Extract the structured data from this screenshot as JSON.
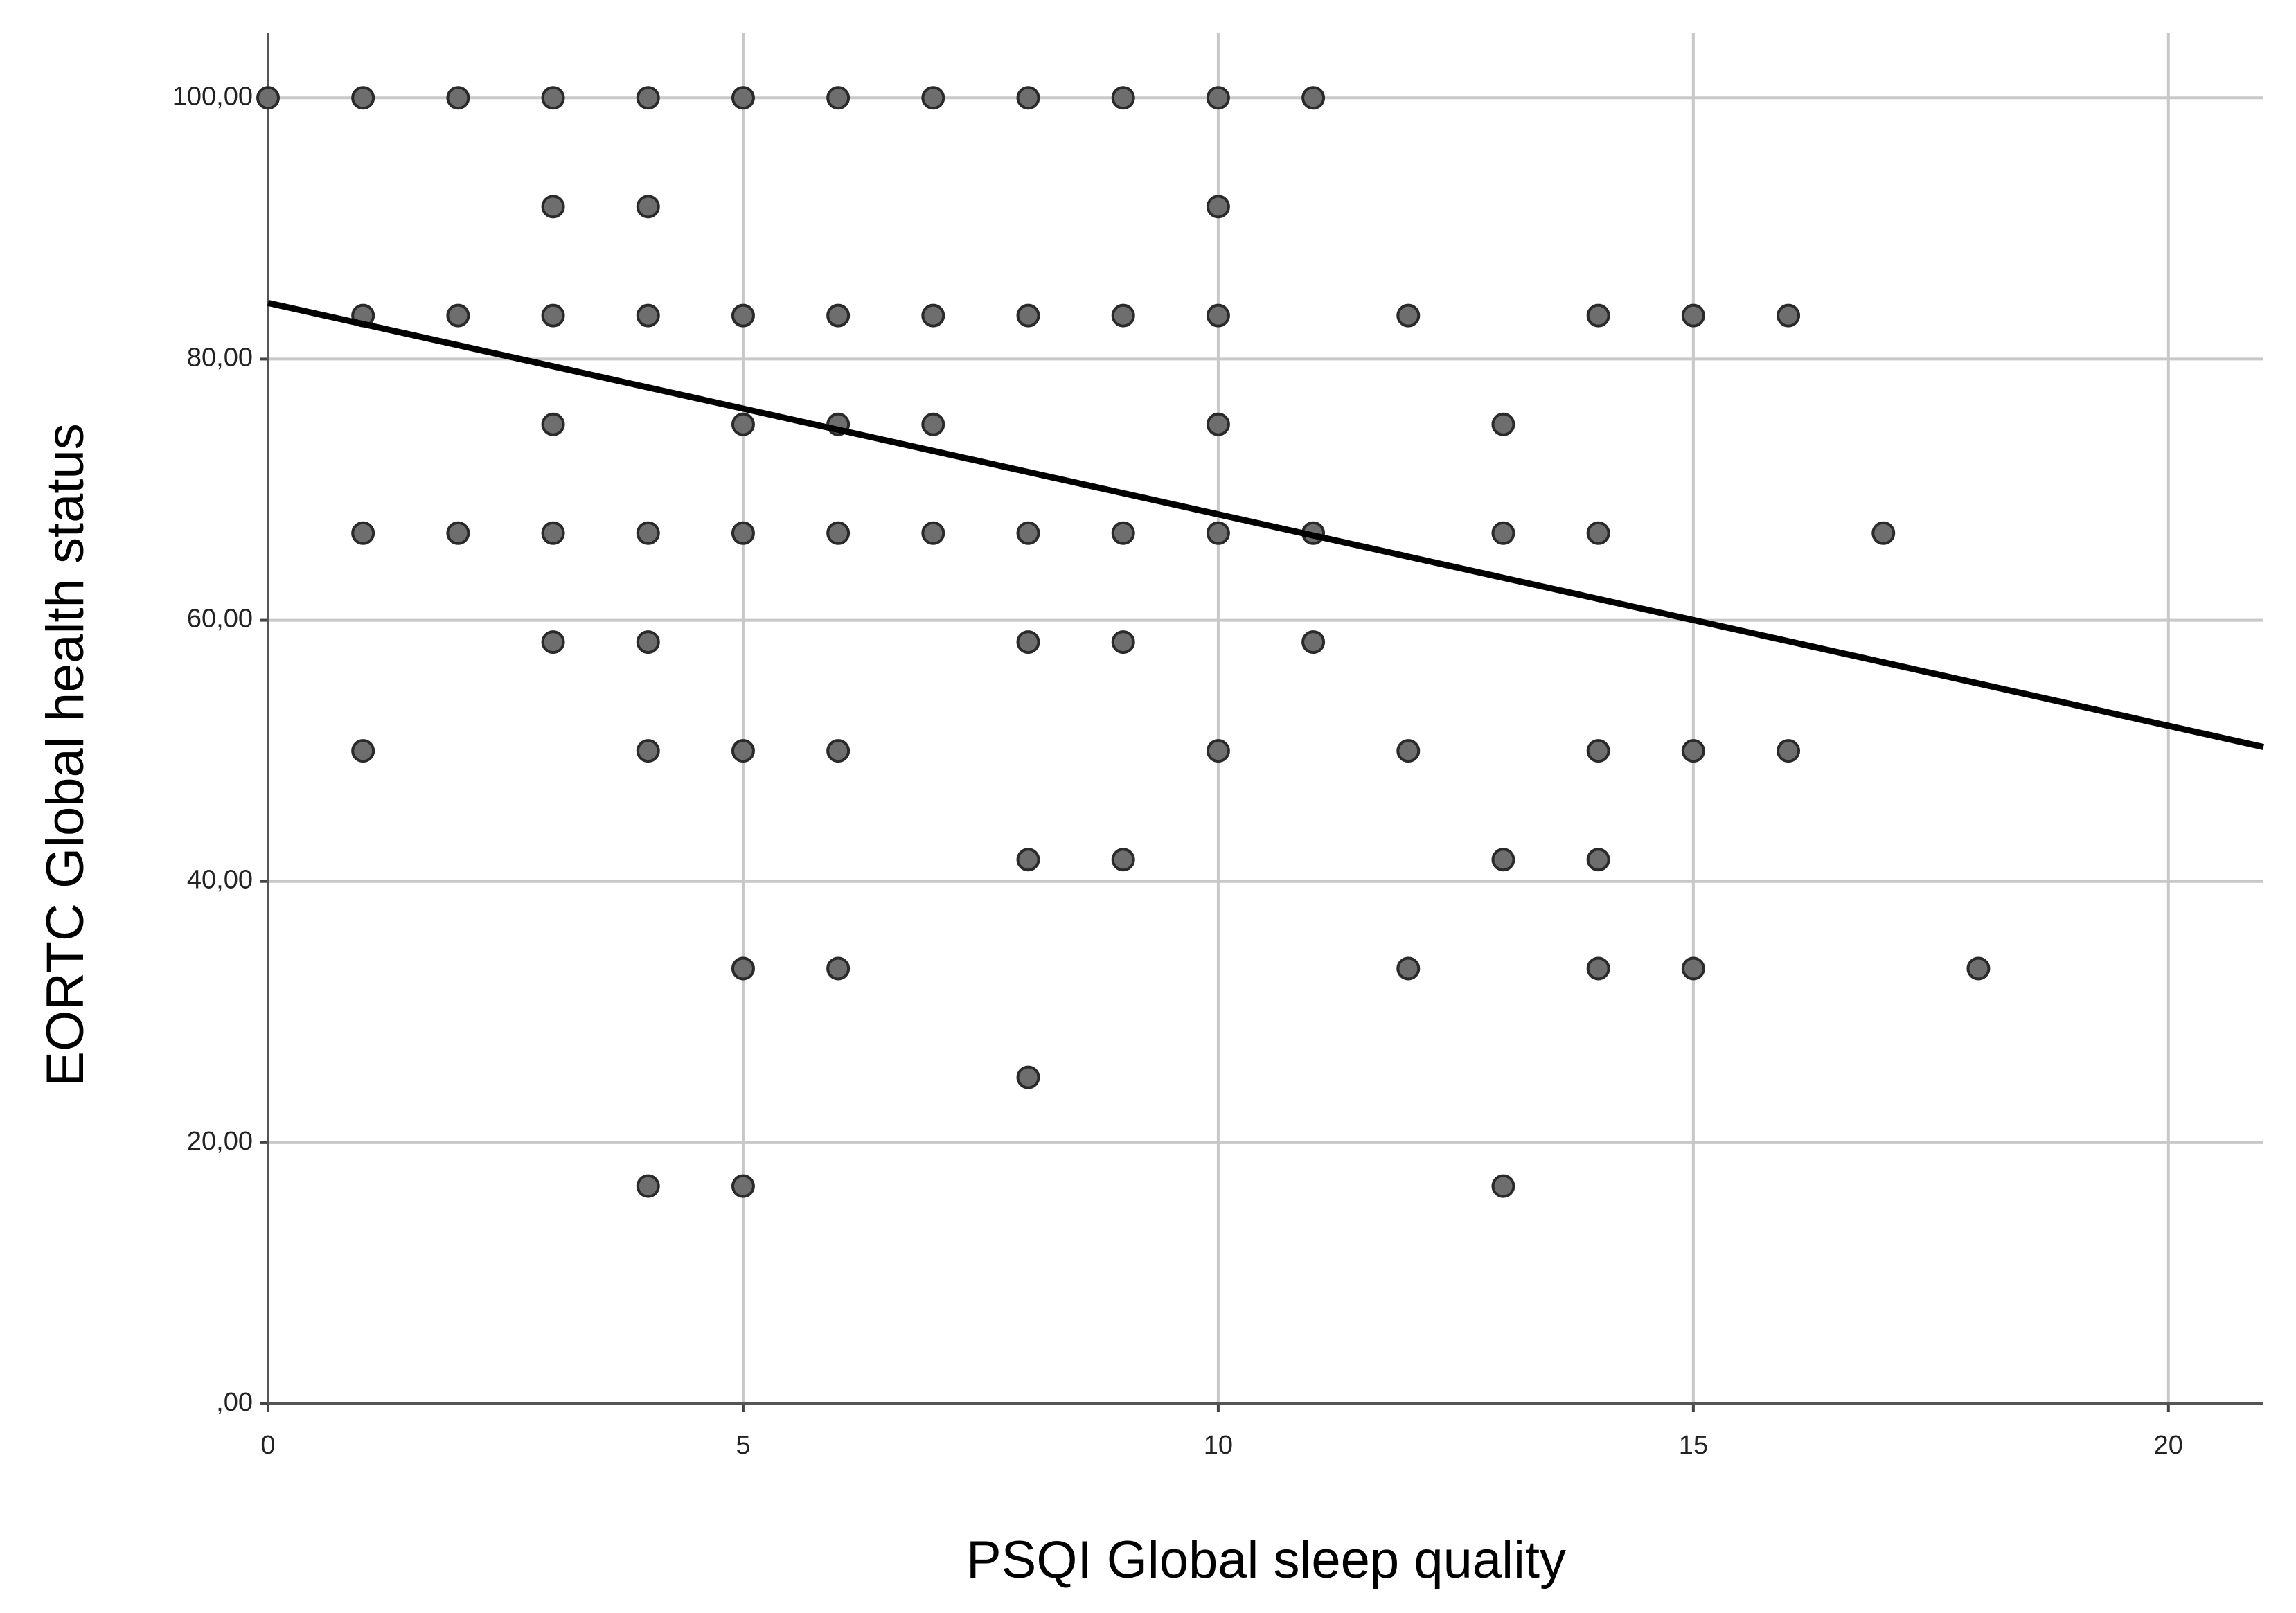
{
  "chart_data": {
    "type": "scatter",
    "x_label": "PSQI Global sleep quality",
    "y_label": "EORTC Global health status",
    "xlim": [
      0,
      21
    ],
    "ylim": [
      0,
      105
    ],
    "xticks": [
      0,
      5,
      10,
      15,
      20
    ],
    "yticks": [
      {
        "value": 0,
        "label": ",00"
      },
      {
        "value": 20,
        "label": "20,00"
      },
      {
        "value": 40,
        "label": "40,00"
      },
      {
        "value": 60,
        "label": "60,00"
      },
      {
        "value": 80,
        "label": "80,00"
      },
      {
        "value": 100,
        "label": "100,00"
      }
    ],
    "grid": true,
    "color": "#6e6e6e",
    "x": [
      0,
      1,
      2,
      3,
      4,
      5,
      6,
      7,
      8,
      9,
      10,
      11,
      3,
      4,
      10,
      1,
      2,
      3,
      4,
      5,
      6,
      7,
      8,
      9,
      10,
      12,
      14,
      15,
      16,
      3,
      5,
      6,
      7,
      10,
      13,
      1,
      2,
      3,
      4,
      5,
      6,
      7,
      8,
      9,
      10,
      11,
      13,
      14,
      17,
      3,
      4,
      8,
      9,
      11,
      1,
      4,
      5,
      6,
      10,
      12,
      14,
      15,
      16,
      8,
      9,
      13,
      14,
      5,
      6,
      12,
      14,
      15,
      18,
      8,
      4,
      5,
      13
    ],
    "values": [
      100,
      100,
      100,
      100,
      100,
      100,
      100,
      100,
      100,
      100,
      100,
      100,
      91.67,
      91.67,
      91.67,
      83.33,
      83.33,
      83.33,
      83.33,
      83.33,
      83.33,
      83.33,
      83.33,
      83.33,
      83.33,
      83.33,
      83.33,
      83.33,
      83.33,
      75,
      75,
      75,
      75,
      75,
      75,
      66.67,
      66.67,
      66.67,
      66.67,
      66.67,
      66.67,
      66.67,
      66.67,
      66.67,
      66.67,
      66.67,
      66.67,
      66.67,
      66.67,
      58.33,
      58.33,
      58.33,
      58.33,
      58.33,
      50,
      50,
      50,
      50,
      50,
      50,
      50,
      50,
      50,
      41.67,
      41.67,
      41.67,
      41.67,
      33.33,
      33.33,
      33.33,
      33.33,
      33.33,
      33.33,
      25,
      16.67,
      16.67,
      16.67
    ],
    "fit": {
      "x": [
        0,
        21
      ],
      "values": [
        84.3,
        50.3
      ],
      "color": "#000000"
    }
  }
}
